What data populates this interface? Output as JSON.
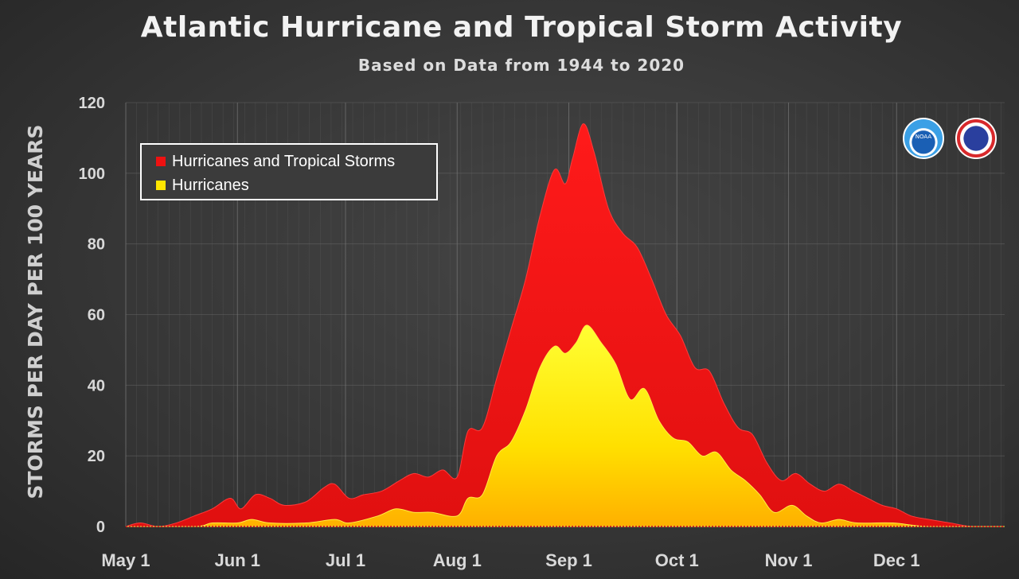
{
  "chart_data": {
    "type": "area",
    "title": "Atlantic Hurricane and Tropical Storm Activity",
    "subtitle": "Based on Data from 1944 to 2020",
    "ylabel": "STORMS PER DAY PER 100 YEARS",
    "xlabel": "",
    "ylim": [
      0,
      120
    ],
    "yticks": [
      0,
      20,
      40,
      60,
      80,
      100,
      120
    ],
    "xlim": [
      "May 1",
      "Dec 31"
    ],
    "xticks": [
      "May 1",
      "Jun 1",
      "Jul 1",
      "Aug 1",
      "Sep 1",
      "Oct 1",
      "Nov 1",
      "Dec 1"
    ],
    "x_units": "date",
    "grid": true,
    "legend_position": "top-left",
    "series": [
      {
        "name": "Hurricanes and Tropical Storms",
        "color": "#ee1111",
        "points": [
          [
            "May 1",
            0
          ],
          [
            "May 5",
            1
          ],
          [
            "May 10",
            0
          ],
          [
            "May 15",
            1
          ],
          [
            "May 20",
            3
          ],
          [
            "May 25",
            5
          ],
          [
            "May 30",
            8
          ],
          [
            "Jun 2",
            5
          ],
          [
            "Jun 6",
            9
          ],
          [
            "Jun 10",
            8
          ],
          [
            "Jun 14",
            6
          ],
          [
            "Jun 20",
            7
          ],
          [
            "Jun 25",
            11
          ],
          [
            "Jun 28",
            12
          ],
          [
            "Jul 2",
            8
          ],
          [
            "Jul 6",
            9
          ],
          [
            "Jul 11",
            10
          ],
          [
            "Jul 16",
            13
          ],
          [
            "Jul 20",
            15
          ],
          [
            "Jul 24",
            14
          ],
          [
            "Jul 28",
            16
          ],
          [
            "Aug 1",
            14
          ],
          [
            "Aug 4",
            27
          ],
          [
            "Aug 8",
            28
          ],
          [
            "Aug 12",
            42
          ],
          [
            "Aug 16",
            56
          ],
          [
            "Aug 20",
            70
          ],
          [
            "Aug 24",
            88
          ],
          [
            "Aug 28",
            101
          ],
          [
            "Aug 31",
            97
          ],
          [
            "Sep 2",
            104
          ],
          [
            "Sep 5",
            114
          ],
          [
            "Sep 8",
            106
          ],
          [
            "Sep 12",
            90
          ],
          [
            "Sep 16",
            83
          ],
          [
            "Sep 20",
            79
          ],
          [
            "Sep 24",
            70
          ],
          [
            "Sep 28",
            60
          ],
          [
            "Oct 2",
            54
          ],
          [
            "Oct 6",
            45
          ],
          [
            "Oct 10",
            44
          ],
          [
            "Oct 14",
            35
          ],
          [
            "Oct 18",
            28
          ],
          [
            "Oct 22",
            26
          ],
          [
            "Oct 26",
            18
          ],
          [
            "Oct 30",
            13
          ],
          [
            "Nov 3",
            15
          ],
          [
            "Nov 7",
            12
          ],
          [
            "Nov 11",
            10
          ],
          [
            "Nov 15",
            12
          ],
          [
            "Nov 19",
            10
          ],
          [
            "Nov 23",
            8
          ],
          [
            "Nov 27",
            6
          ],
          [
            "Dec 1",
            5
          ],
          [
            "Dec 5",
            3
          ],
          [
            "Dec 10",
            2
          ],
          [
            "Dec 16",
            1
          ],
          [
            "Dec 22",
            0
          ],
          [
            "Dec 31",
            0
          ]
        ]
      },
      {
        "name": "Hurricanes",
        "color": "#ffe600",
        "points": [
          [
            "May 1",
            0
          ],
          [
            "May 20",
            0
          ],
          [
            "May 25",
            1
          ],
          [
            "Jun 1",
            1
          ],
          [
            "Jun 5",
            2
          ],
          [
            "Jun 10",
            1
          ],
          [
            "Jun 20",
            1
          ],
          [
            "Jun 28",
            2
          ],
          [
            "Jul 2",
            1
          ],
          [
            "Jul 10",
            3
          ],
          [
            "Jul 15",
            5
          ],
          [
            "Jul 20",
            4
          ],
          [
            "Jul 25",
            4
          ],
          [
            "Aug 1",
            3
          ],
          [
            "Aug 4",
            8
          ],
          [
            "Aug 8",
            9
          ],
          [
            "Aug 12",
            20
          ],
          [
            "Aug 16",
            24
          ],
          [
            "Aug 20",
            33
          ],
          [
            "Aug 24",
            45
          ],
          [
            "Aug 28",
            51
          ],
          [
            "Aug 31",
            49
          ],
          [
            "Sep 3",
            52
          ],
          [
            "Sep 6",
            57
          ],
          [
            "Sep 10",
            52
          ],
          [
            "Sep 14",
            46
          ],
          [
            "Sep 18",
            36
          ],
          [
            "Sep 22",
            39
          ],
          [
            "Sep 26",
            30
          ],
          [
            "Sep 30",
            25
          ],
          [
            "Oct 4",
            24
          ],
          [
            "Oct 8",
            20
          ],
          [
            "Oct 12",
            21
          ],
          [
            "Oct 16",
            16
          ],
          [
            "Oct 20",
            13
          ],
          [
            "Oct 24",
            9
          ],
          [
            "Oct 28",
            4
          ],
          [
            "Nov 2",
            6
          ],
          [
            "Nov 6",
            3
          ],
          [
            "Nov 10",
            1
          ],
          [
            "Nov 15",
            2
          ],
          [
            "Nov 20",
            1
          ],
          [
            "Nov 30",
            1
          ],
          [
            "Dec 10",
            0
          ],
          [
            "Dec 31",
            0
          ]
        ]
      }
    ]
  },
  "legend": {
    "items": [
      {
        "label": "Hurricanes and Tropical Storms",
        "color": "#ee1111"
      },
      {
        "label": "Hurricanes",
        "color": "#ffe600"
      }
    ]
  },
  "logos": {
    "left": "NOAA",
    "right": "NATIONAL WEATHER SERVICE"
  }
}
